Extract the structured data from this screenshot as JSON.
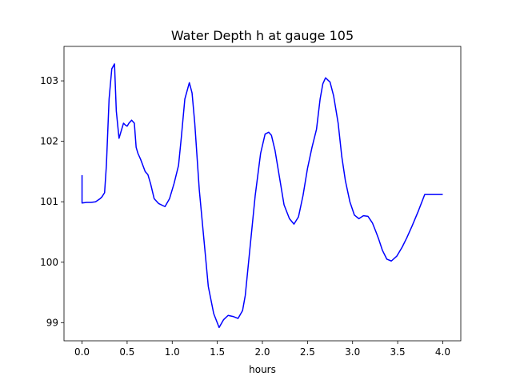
{
  "chart_data": {
    "type": "line",
    "title": "Water Depth h at gauge 105",
    "xlabel": "hours",
    "ylabel": "",
    "xlim": [
      -0.2,
      4.2
    ],
    "ylim": [
      98.7,
      103.57
    ],
    "xticks": [
      0.0,
      0.5,
      1.0,
      1.5,
      2.0,
      2.5,
      3.0,
      3.5,
      4.0
    ],
    "xtick_labels": [
      "0.0",
      "0.5",
      "1.0",
      "1.5",
      "2.0",
      "2.5",
      "3.0",
      "3.5",
      "4.0"
    ],
    "yticks": [
      99,
      100,
      101,
      102,
      103
    ],
    "ytick_labels": [
      "99",
      "100",
      "101",
      "102",
      "103"
    ],
    "grid": false,
    "series": [
      {
        "color": "#0000ff",
        "x": [
          0.0,
          0.0,
          0.05,
          0.1,
          0.15,
          0.2,
          0.22,
          0.25,
          0.27,
          0.3,
          0.33,
          0.36,
          0.38,
          0.41,
          0.43,
          0.46,
          0.48,
          0.5,
          0.52,
          0.55,
          0.58,
          0.6,
          0.62,
          0.65,
          0.7,
          0.73,
          0.76,
          0.8,
          0.85,
          0.92,
          0.97,
          1.02,
          1.07,
          1.1,
          1.14,
          1.19,
          1.22,
          1.25,
          1.3,
          1.35,
          1.4,
          1.46,
          1.52,
          1.57,
          1.62,
          1.68,
          1.73,
          1.78,
          1.81,
          1.86,
          1.92,
          1.98,
          2.03,
          2.07,
          2.1,
          2.14,
          2.19,
          2.24,
          2.3,
          2.35,
          2.4,
          2.45,
          2.5,
          2.55,
          2.6,
          2.64,
          2.67,
          2.7,
          2.75,
          2.79,
          2.84,
          2.88,
          2.92,
          2.97,
          3.02,
          3.07,
          3.12,
          3.17,
          3.22,
          3.26,
          3.29,
          3.33,
          3.38,
          3.43,
          3.49,
          3.55,
          3.6,
          3.66,
          3.73,
          3.8,
          3.87,
          3.92,
          3.96,
          4.0
        ],
        "y": [
          101.44,
          100.98,
          100.99,
          100.99,
          101.0,
          101.05,
          101.08,
          101.15,
          101.6,
          102.7,
          103.2,
          103.28,
          102.5,
          102.05,
          102.15,
          102.3,
          102.27,
          102.25,
          102.3,
          102.35,
          102.3,
          101.9,
          101.8,
          101.7,
          101.5,
          101.45,
          101.3,
          101.05,
          100.97,
          100.92,
          101.05,
          101.3,
          101.6,
          102.05,
          102.7,
          102.97,
          102.8,
          102.3,
          101.2,
          100.4,
          99.6,
          99.15,
          98.92,
          99.05,
          99.12,
          99.1,
          99.07,
          99.2,
          99.45,
          100.2,
          101.1,
          101.8,
          102.12,
          102.15,
          102.1,
          101.85,
          101.4,
          100.95,
          100.72,
          100.63,
          100.75,
          101.1,
          101.55,
          101.9,
          102.2,
          102.7,
          102.95,
          103.05,
          102.98,
          102.75,
          102.3,
          101.75,
          101.35,
          101.0,
          100.78,
          100.72,
          100.77,
          100.76,
          100.65,
          100.5,
          100.38,
          100.2,
          100.05,
          100.02,
          100.1,
          100.25,
          100.4,
          100.6,
          100.85,
          101.12,
          101.12,
          101.12,
          101.12,
          101.12
        ]
      }
    ]
  }
}
